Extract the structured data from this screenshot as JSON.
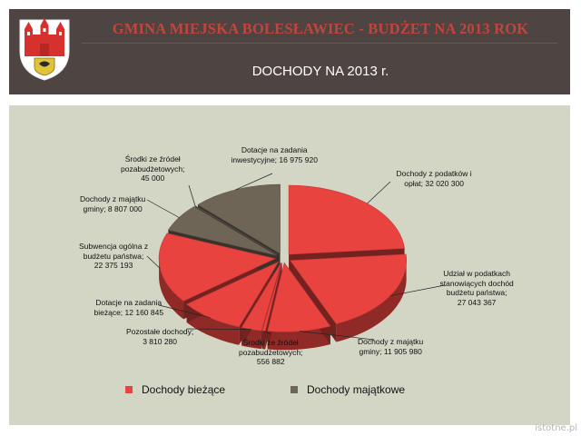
{
  "header": {
    "title": "GMINA MIEJSKA BOLESŁAWIEC - BUDŻET NA 2013 ROK",
    "subtitle": "DOCHODY NA 2013 r."
  },
  "colors": {
    "header_bg": "#4e4542",
    "panel_bg": "#d3d6c5",
    "current_income": "#e8433f",
    "capital_income": "#6e6557"
  },
  "legend": [
    {
      "label": "Dochody bieżące",
      "color": "#e8433f"
    },
    {
      "label": "Dochody majątkowe",
      "color": "#6e6557"
    }
  ],
  "chart_data": {
    "type": "pie",
    "slices": [
      {
        "label": "Dochody z podatków i opłat; 32 020 300",
        "value": 32020300,
        "group": "Dochody bieżące"
      },
      {
        "label": "Udział w podatkach stanowiących dochód budżetu państwa; 27 043 367",
        "value": 27043367,
        "group": "Dochody bieżące"
      },
      {
        "label": "Dochody z majątku gminy; 11 905 980",
        "value": 11905980,
        "group": "Dochody bieżące"
      },
      {
        "label": "Środki ze źródeł pozabudżetowych; 556 882",
        "value": 556882,
        "group": "Dochody bieżące"
      },
      {
        "label": "Pozostałe dochody; 3 810 280",
        "value": 3810280,
        "group": "Dochody bieżące"
      },
      {
        "label": "Dotacje na zadania bieżące; 12 160 845",
        "value": 12160845,
        "group": "Dochody bieżące"
      },
      {
        "label": "Subwencja ogólna z budżetu państwa; 22 375 193",
        "value": 22375193,
        "group": "Dochody bieżące"
      },
      {
        "label": "Dochody z majątku gminy; 8 807 000",
        "value": 8807000,
        "group": "Dochody majątkowe"
      },
      {
        "label": "Środki ze źródeł pozabudżetowych; 45 000",
        "value": 45000,
        "group": "Dochody majątkowe"
      },
      {
        "label": "Dotacje na zadania inwestycyjne; 16 975 920",
        "value": 16975920,
        "group": "Dochody majątkowe"
      }
    ],
    "label_lines": [
      [
        "Dochody z podatków i",
        "opłat; 32 020 300"
      ],
      [
        "Udział w podatkach",
        "stanowiących dochód",
        "budżetu państwa;",
        "27 043 367"
      ],
      [
        "Dochody z majątku",
        "gminy; 11 905 980"
      ],
      [
        "Środki ze źródeł",
        "pozabudżetowych;",
        "556 882"
      ],
      [
        "Pozostałe dochody;",
        "3 810 280"
      ],
      [
        "Dotacje na zadania",
        "bieżące; 12 160 845"
      ],
      [
        "Subwencja ogólna z",
        "budżetu państwa;",
        "22 375 193"
      ],
      [
        "Dochody z majątku",
        "gminy; 8 807 000"
      ],
      [
        "Środki ze źródeł",
        "pozabudżetowych;",
        "45 000"
      ],
      [
        "Dotacje na zadania",
        "inwestycyjne; 16 975 920"
      ]
    ],
    "style": "3d exploded",
    "legend_position": "bottom"
  },
  "watermark": "istotne.pl"
}
